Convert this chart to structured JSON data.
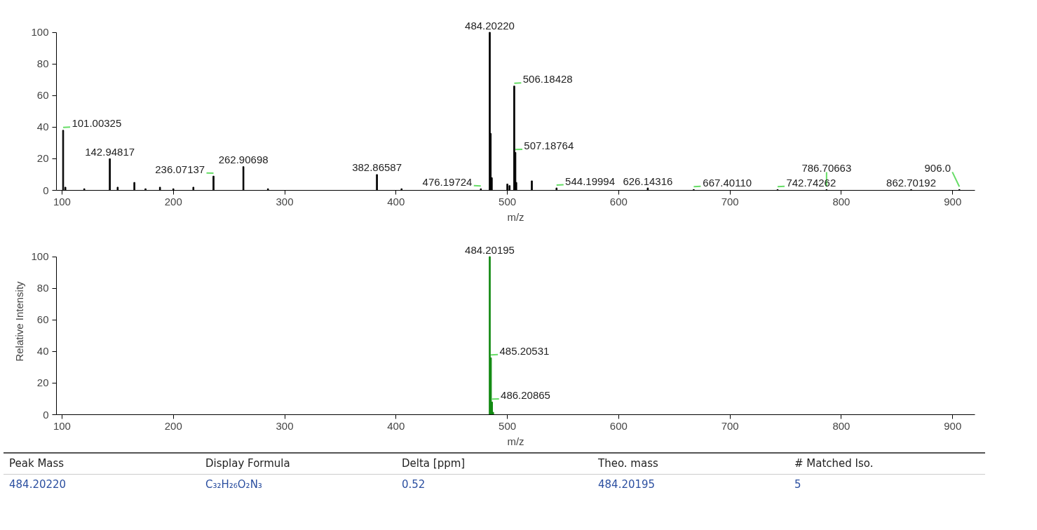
{
  "chart_data": [
    {
      "type": "bar",
      "xlabel": "m/z",
      "xlim": [
        95,
        920
      ],
      "ylim": [
        0,
        100
      ],
      "xticks": [
        100,
        200,
        300,
        400,
        500,
        600,
        700,
        800,
        900
      ],
      "yticks": [
        0,
        20,
        40,
        60,
        80,
        100
      ],
      "grid": false,
      "color": "#000000",
      "x": [
        101.00325,
        103,
        120,
        142.94817,
        150,
        165,
        175,
        188,
        200,
        218,
        236.07137,
        262.90698,
        285,
        382.86587,
        405,
        476.19724,
        484.2022,
        485,
        486,
        500,
        502,
        506.18428,
        507.18764,
        508,
        522,
        544.19994,
        626.14316,
        667.4011,
        742.74262,
        786.70663,
        862.70192,
        906
      ],
      "values": [
        38,
        2,
        1,
        20,
        2,
        5,
        1,
        2,
        1,
        2,
        9,
        15,
        1,
        10,
        1,
        1,
        100,
        36,
        8,
        4,
        3,
        66,
        24,
        5,
        6,
        1.5,
        1.5,
        0.5,
        0.5,
        0.5,
        0.5,
        0.5
      ],
      "annotations": [
        {
          "text": "101.00325",
          "x": 101.00325,
          "y": 38
        },
        {
          "text": "142.94817",
          "x": 142.94817,
          "y": 20
        },
        {
          "text": "236.07137",
          "x": 236.07137,
          "y": 9
        },
        {
          "text": "262.90698",
          "x": 262.90698,
          "y": 15
        },
        {
          "text": "382.86587",
          "x": 382.86587,
          "y": 10
        },
        {
          "text": "476.19724",
          "x": 476.19724,
          "y": 1
        },
        {
          "text": "484.20220",
          "x": 484.2022,
          "y": 100
        },
        {
          "text": "506.18428",
          "x": 506.18428,
          "y": 66
        },
        {
          "text": "507.18764",
          "x": 507.18764,
          "y": 24
        },
        {
          "text": "544.19994",
          "x": 544.19994,
          "y": 1.5
        },
        {
          "text": "626.14316",
          "x": 626.14316,
          "y": 1.5
        },
        {
          "text": "667.40110",
          "x": 667.4011,
          "y": 0.5
        },
        {
          "text": "742.74262",
          "x": 742.74262,
          "y": 0.5
        },
        {
          "text": "786.70663",
          "x": 786.70663,
          "y": 0.5
        },
        {
          "text": "862.70192",
          "x": 862.70192,
          "y": 0.5
        },
        {
          "text": "906.0",
          "x": 906,
          "y": 0.5
        }
      ]
    },
    {
      "type": "bar",
      "xlabel": "m/z",
      "ylabel": "Relative Intensity",
      "xlim": [
        95,
        920
      ],
      "ylim": [
        0,
        100
      ],
      "xticks": [
        100,
        200,
        300,
        400,
        500,
        600,
        700,
        800,
        900
      ],
      "yticks": [
        0,
        20,
        40,
        60,
        80,
        100
      ],
      "grid": false,
      "color": "#138a13",
      "x": [
        484.20195,
        485.20531,
        486.20865,
        487.2
      ],
      "values": [
        100,
        36,
        8,
        1.5
      ],
      "annotations": [
        {
          "text": "484.20195",
          "x": 484.20195,
          "y": 100
        },
        {
          "text": "485.20531",
          "x": 485.20531,
          "y": 36
        },
        {
          "text": "486.20865",
          "x": 486.20865,
          "y": 8
        }
      ]
    },
    {
      "type": "other",
      "categories": [
        "Peak Mass",
        "Display Formula",
        "Delta [ppm]",
        "Theo. mass",
        "# Matched Iso."
      ],
      "annotations": [
        "484.20220",
        "C₃₂H₂₆O₂N₃",
        "0.52",
        "484.20195",
        "5"
      ]
    }
  ]
}
